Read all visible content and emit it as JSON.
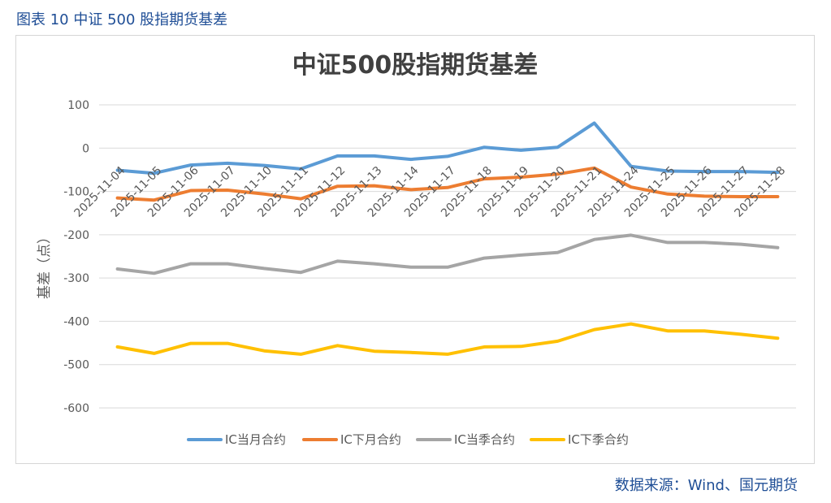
{
  "figure_caption": "图表 10  中证 500 股指期货基差",
  "source_note": "数据来源：Wind、国元期货",
  "colors": {
    "caption": "#1f4e96",
    "grid": "#d9d9d9",
    "axis_text": "#595959",
    "title": "#404040"
  },
  "chart_data": {
    "type": "line",
    "title": "中证500股指期货基差",
    "xlabel": "",
    "ylabel": "基差（点）",
    "ylim": [
      -600,
      100
    ],
    "yticks": [
      100,
      0,
      -100,
      -200,
      -300,
      -400,
      -500,
      -600
    ],
    "grid": true,
    "legend_position": "bottom",
    "categories": [
      "2025-11-04",
      "2025-11-05",
      "2025-11-06",
      "2025-11-07",
      "2025-11-10",
      "2025-11-11",
      "2025-11-12",
      "2025-11-13",
      "2025-11-14",
      "2025-11-17",
      "2025-11-18",
      "2025-11-19",
      "2025-11-20",
      "2025-11-21",
      "2025-11-24",
      "2025-11-25",
      "2025-11-26",
      "2025-11-27",
      "2025-11-28"
    ],
    "series": [
      {
        "name": "IC当月合约",
        "color": "#5b9bd5",
        "values": [
          -51,
          -58,
          -39,
          -35,
          -40,
          -48,
          -18,
          -18,
          -26,
          -19,
          2,
          -5,
          2,
          58,
          -42,
          -53,
          -54,
          -54,
          -56
        ]
      },
      {
        "name": "IC下月合约",
        "color": "#ed7d31",
        "values": [
          -115,
          -120,
          -98,
          -97,
          -106,
          -117,
          -88,
          -87,
          -96,
          -91,
          -71,
          -67,
          -60,
          -46,
          -90,
          -106,
          -111,
          -112,
          -112
        ]
      },
      {
        "name": "IC当季合约",
        "color": "#a5a5a5",
        "values": [
          -279,
          -289,
          -267,
          -267,
          -278,
          -287,
          -261,
          -267,
          -275,
          -275,
          -254,
          -247,
          -241,
          -211,
          -201,
          -218,
          -218,
          -222,
          -230
        ]
      },
      {
        "name": "IC下季合约",
        "color": "#ffc000",
        "values": [
          -459,
          -474,
          -451,
          -451,
          -468,
          -476,
          -456,
          -469,
          -472,
          -476,
          -459,
          -458,
          -446,
          -419,
          -406,
          -422,
          -422,
          -430,
          -439
        ]
      }
    ]
  }
}
